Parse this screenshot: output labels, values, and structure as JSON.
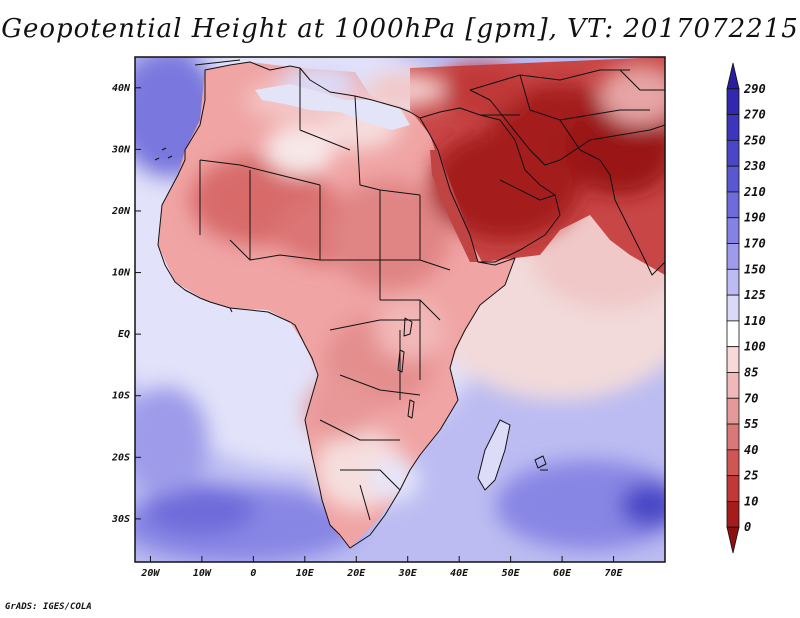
{
  "title": "Geopotential Height at 1000hPa [gpm], VT: 2017072215",
  "credit": "GrADS: IGES/COLA",
  "map": {
    "lon_range": [
      -23,
      80
    ],
    "lat_range": [
      -37,
      45
    ],
    "lat_ticks": [
      {
        "value": 40,
        "label": "40N"
      },
      {
        "value": 30,
        "label": "30N"
      },
      {
        "value": 20,
        "label": "20N"
      },
      {
        "value": 10,
        "label": "10N"
      },
      {
        "value": 0,
        "label": "EQ"
      },
      {
        "value": -10,
        "label": "10S"
      },
      {
        "value": -20,
        "label": "20S"
      },
      {
        "value": -30,
        "label": "30S"
      }
    ],
    "lon_ticks": [
      {
        "value": -20,
        "label": "20W"
      },
      {
        "value": -10,
        "label": "10W"
      },
      {
        "value": 0,
        "label": "0"
      },
      {
        "value": 10,
        "label": "10E"
      },
      {
        "value": 20,
        "label": "20E"
      },
      {
        "value": 30,
        "label": "30E"
      },
      {
        "value": 40,
        "label": "40E"
      },
      {
        "value": 50,
        "label": "50E"
      },
      {
        "value": 60,
        "label": "60E"
      },
      {
        "value": 70,
        "label": "70E"
      }
    ]
  },
  "colorbar": {
    "levels": [
      "290",
      "270",
      "250",
      "230",
      "210",
      "190",
      "170",
      "150",
      "125",
      "110",
      "100",
      "85",
      "70",
      "55",
      "40",
      "25",
      "10",
      "0"
    ],
    "colors": [
      "#2a1ca0",
      "#3228b0",
      "#3c36bc",
      "#4a46c6",
      "#5a58d0",
      "#6e6cda",
      "#8482e2",
      "#9e9cea",
      "#bcbcf2",
      "#dadaf8",
      "#ffffff",
      "#f8d8d8",
      "#f0b8b8",
      "#e49a9a",
      "#d87878",
      "#d05656",
      "#c03838",
      "#a41c1c",
      "#8c1010"
    ]
  },
  "colors": {
    "background": "#ffffff",
    "ocean_low": "#8888e6",
    "ocean_mid": "#bcbcf2",
    "coast_band": "#dadaf8",
    "land_mid": "#f0a0a0",
    "land_high": "#d87070",
    "arabia": "#b42a2a",
    "border": "#111111"
  }
}
